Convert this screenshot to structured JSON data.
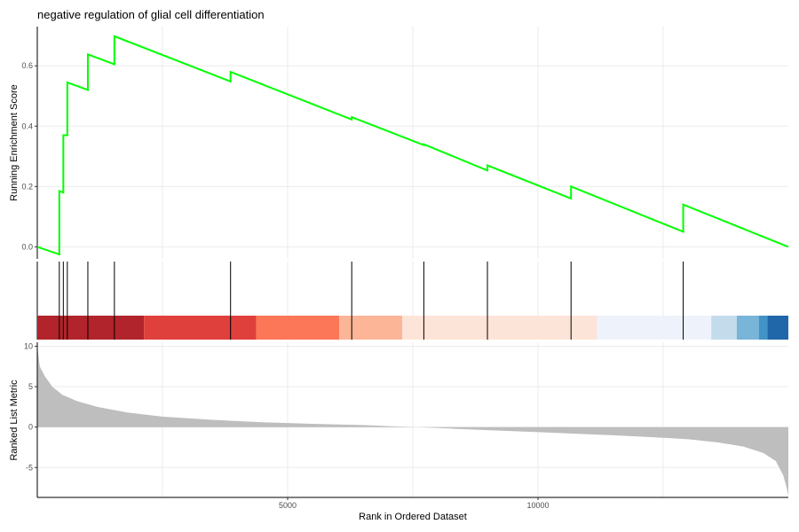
{
  "chart_data": {
    "type": "line",
    "title": "negative regulation of glial cell differentiation",
    "xlabel": "Rank in Ordered Dataset",
    "n_genes": 15000,
    "xlim": [
      0,
      15000
    ],
    "x_ticks": [
      5000,
      10000
    ],
    "x_tick_labels": [
      "5000",
      "10000"
    ],
    "grid_major_x": true,
    "running_score": {
      "ylabel": "Running Enrichment Score",
      "ylim": [
        -0.04,
        0.73
      ],
      "y_ticks": [
        0.0,
        0.2,
        0.4,
        0.6
      ],
      "y_tick_labels": [
        "0.0",
        "0.2",
        "0.4",
        "0.6"
      ],
      "color": "#00ff00",
      "points": [
        [
          0,
          0.0
        ],
        [
          440,
          -0.025
        ],
        [
          440,
          0.185
        ],
        [
          520,
          0.18
        ],
        [
          520,
          0.37
        ],
        [
          600,
          0.37
        ],
        [
          600,
          0.545
        ],
        [
          1010,
          0.52
        ],
        [
          1010,
          0.638
        ],
        [
          1540,
          0.605
        ],
        [
          1540,
          0.698
        ],
        [
          3860,
          0.548
        ],
        [
          3860,
          0.58
        ],
        [
          6280,
          0.422
        ],
        [
          6280,
          0.43
        ],
        [
          7720,
          0.337
        ],
        [
          7720,
          0.34
        ],
        [
          8990,
          0.253
        ],
        [
          8990,
          0.27
        ],
        [
          10660,
          0.16
        ],
        [
          10660,
          0.2
        ],
        [
          12900,
          0.05
        ],
        [
          12900,
          0.14
        ],
        [
          15000,
          0.0
        ]
      ]
    },
    "hit_positions": [
      440,
      520,
      600,
      1010,
      1540,
      3860,
      6280,
      7720,
      8990,
      10660,
      12900
    ],
    "rank_color_bands": [
      {
        "start": 0,
        "end": 2130,
        "color": "#b2242b"
      },
      {
        "start": 2130,
        "end": 4370,
        "color": "#e0403c"
      },
      {
        "start": 4370,
        "end": 6030,
        "color": "#fb7758"
      },
      {
        "start": 6030,
        "end": 7290,
        "color": "#fcb597"
      },
      {
        "start": 7290,
        "end": 11180,
        "color": "#fde4d8"
      },
      {
        "start": 11180,
        "end": 13460,
        "color": "#eef3fb"
      },
      {
        "start": 13460,
        "end": 13970,
        "color": "#c4dbeb"
      },
      {
        "start": 13970,
        "end": 14410,
        "color": "#79b4d9"
      },
      {
        "start": 14410,
        "end": 14580,
        "color": "#4294c6"
      },
      {
        "start": 14580,
        "end": 15000,
        "color": "#2067aa"
      }
    ],
    "ranked_metric": {
      "ylabel": "Ranked List Metric",
      "ylim": [
        -8.7,
        10.5
      ],
      "y_ticks": [
        10,
        5,
        0,
        -5
      ],
      "y_tick_labels": [
        "10",
        "5",
        "0",
        "-5"
      ],
      "color": "#bebebe",
      "points": [
        [
          0,
          10.0
        ],
        [
          50,
          7.5
        ],
        [
          150,
          6.3
        ],
        [
          300,
          5.0
        ],
        [
          500,
          4.0
        ],
        [
          800,
          3.2
        ],
        [
          1200,
          2.5
        ],
        [
          1800,
          1.8
        ],
        [
          2500,
          1.3
        ],
        [
          3500,
          0.9
        ],
        [
          4500,
          0.6
        ],
        [
          5500,
          0.4
        ],
        [
          6500,
          0.25
        ],
        [
          7300,
          0.05
        ],
        [
          7600,
          0.0
        ],
        [
          8500,
          -0.25
        ],
        [
          9500,
          -0.5
        ],
        [
          10500,
          -0.75
        ],
        [
          11500,
          -1.0
        ],
        [
          12300,
          -1.25
        ],
        [
          13000,
          -1.5
        ],
        [
          13600,
          -1.9
        ],
        [
          14100,
          -2.4
        ],
        [
          14500,
          -3.2
        ],
        [
          14750,
          -4.2
        ],
        [
          14900,
          -6.0
        ],
        [
          14970,
          -7.6
        ],
        [
          15000,
          -8.5
        ]
      ]
    }
  }
}
